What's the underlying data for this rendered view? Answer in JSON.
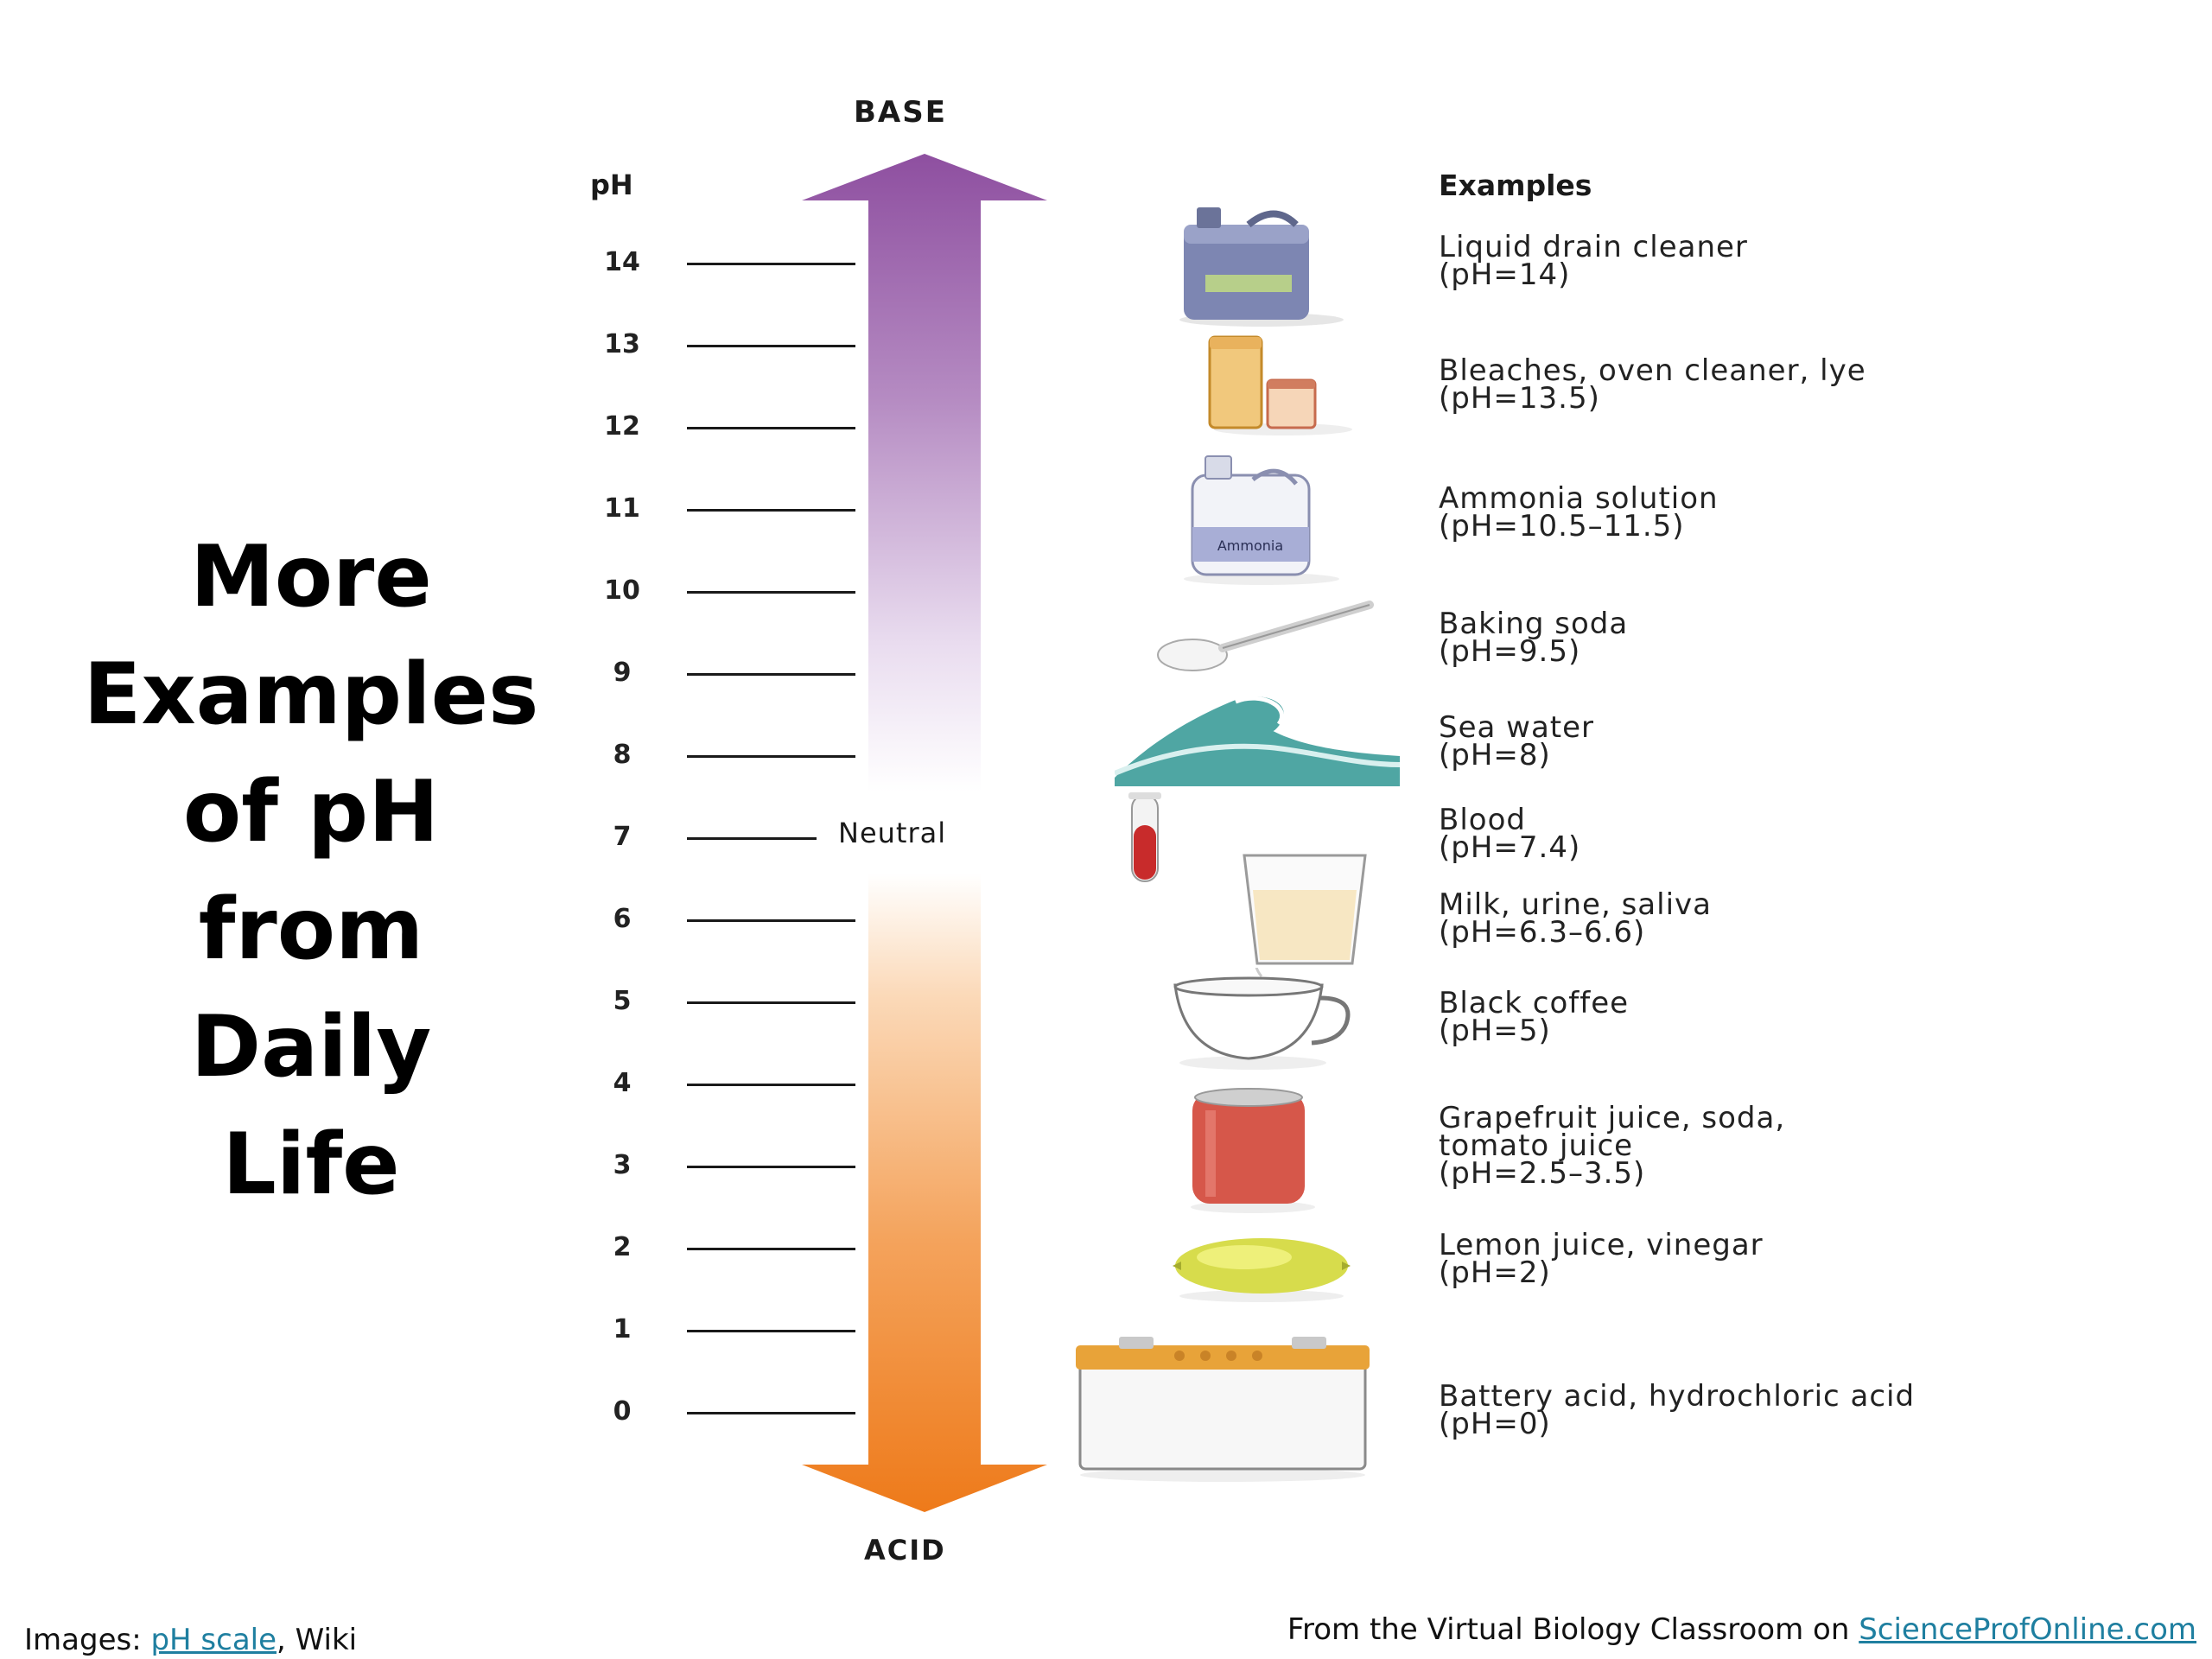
{
  "title_lines": [
    "More",
    "Examples",
    "of pH",
    "from",
    "Daily",
    "Life"
  ],
  "scale": {
    "top_label": "BASE",
    "bottom_label": "ACID",
    "axis_label": "pH",
    "neutral_label": "Neutral",
    "ticks": [
      "14",
      "13",
      "12",
      "11",
      "10",
      "9",
      "8",
      "7",
      "6",
      "5",
      "4",
      "3",
      "2",
      "1",
      "0"
    ],
    "colors": {
      "base": "#8e4fa0",
      "neutral": "#ffffff",
      "acid": "#ee7a1a"
    }
  },
  "examples_header": "Examples",
  "examples": [
    {
      "name": "Liquid drain cleaner",
      "ph": "(pH=14)",
      "icon": "drain-cleaner-jug-icon"
    },
    {
      "name": "Bleaches, oven cleaner, lye",
      "ph": "(pH=13.5)",
      "icon": "bleach-cans-icon"
    },
    {
      "name": "Ammonia solution",
      "ph": "(pH=10.5–11.5)",
      "icon": "ammonia-bottle-icon",
      "icon_label": "Ammonia"
    },
    {
      "name": "Baking soda",
      "ph": "(pH=9.5)",
      "icon": "spoon-icon"
    },
    {
      "name": "Sea water",
      "ph": "(pH=8)",
      "icon": "wave-icon"
    },
    {
      "name": "Blood",
      "ph": "(pH=7.4)",
      "icon": "test-tube-icon"
    },
    {
      "name": "Milk, urine, saliva",
      "ph": "(pH=6.3–6.6)",
      "icon": "milk-glass-icon"
    },
    {
      "name": "Black coffee",
      "ph": "(pH=5)",
      "icon": "coffee-cup-icon"
    },
    {
      "name": "Grapefruit juice, soda,",
      "name2": "tomato juice",
      "ph": "(pH=2.5–3.5)",
      "icon": "soda-can-icon"
    },
    {
      "name": "Lemon juice, vinegar",
      "ph": "(pH=2)",
      "icon": "lemon-icon"
    },
    {
      "name": "Battery acid, hydrochloric acid",
      "ph": "(pH=0)",
      "icon": "battery-icon"
    }
  ],
  "footer": {
    "left_prefix": "Images: ",
    "left_link": "pH scale",
    "left_suffix": ", Wiki",
    "right_prefix": "From the Virtual Biology Classroom on ",
    "right_link": "ScienceProfOnline.com"
  }
}
